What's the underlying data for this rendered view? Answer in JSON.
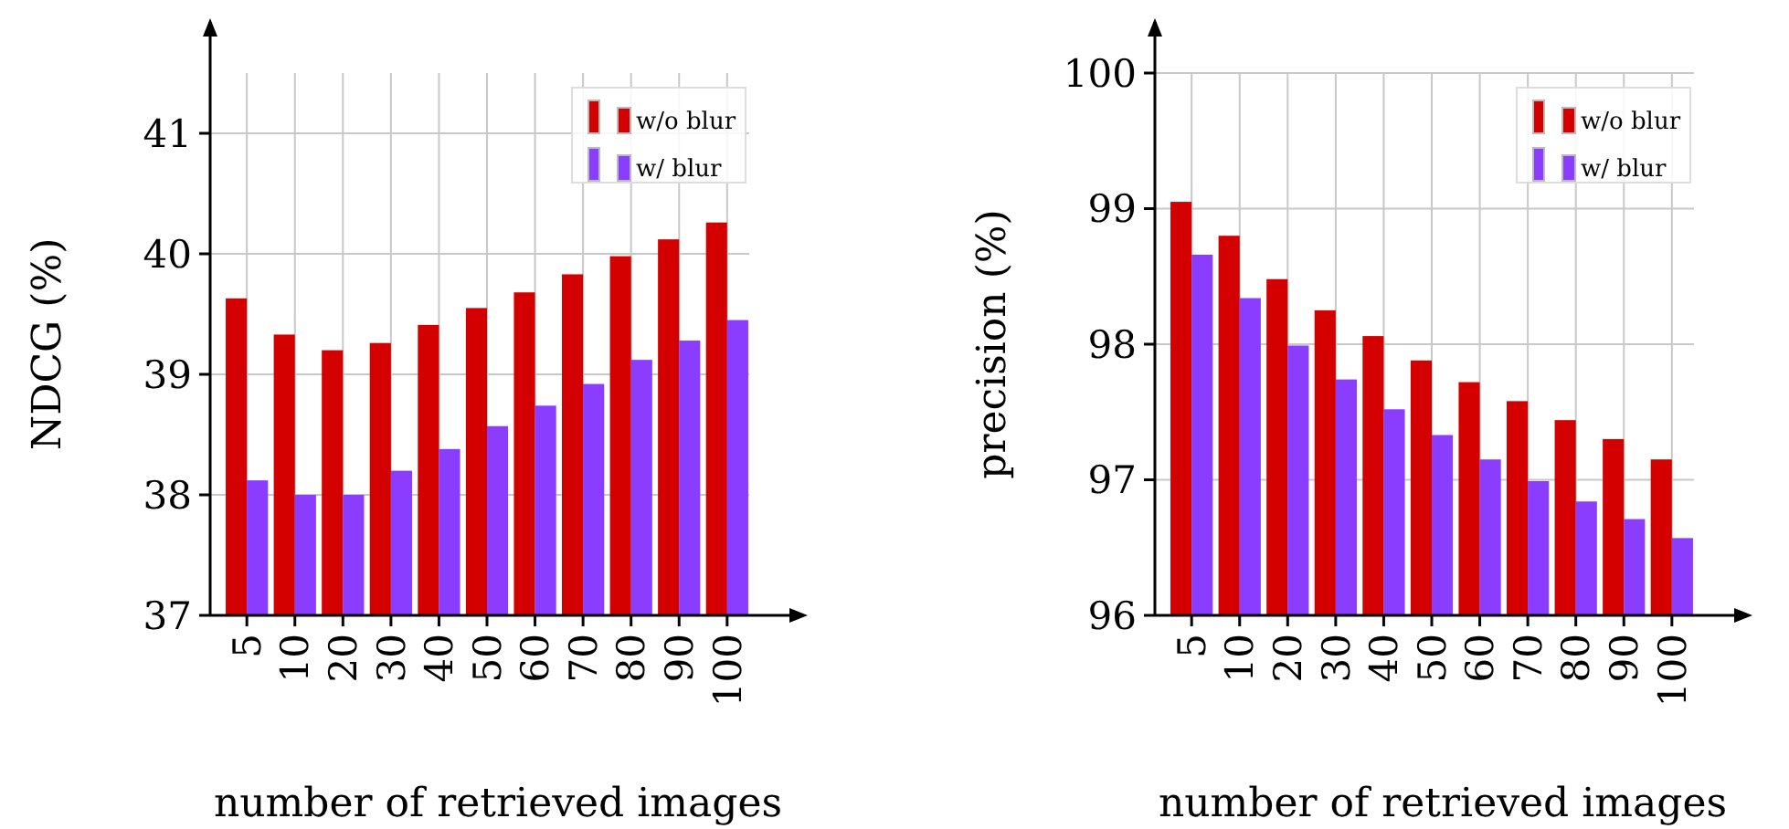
{
  "chart_data": [
    {
      "type": "bar",
      "xlabel": "number of retrieved images",
      "ylabel": "NDCG (%)",
      "categories": [
        "5",
        "10",
        "20",
        "30",
        "40",
        "50",
        "60",
        "70",
        "80",
        "90",
        "100"
      ],
      "series": [
        {
          "name": "w/o blur",
          "color": "#d40000",
          "values": [
            39.63,
            39.33,
            39.2,
            39.26,
            39.41,
            39.55,
            39.68,
            39.83,
            39.98,
            40.12,
            40.26
          ]
        },
        {
          "name": "w/ blur",
          "color": "#8b3dff",
          "values": [
            38.12,
            38.0,
            38.0,
            38.2,
            38.38,
            38.57,
            38.74,
            38.92,
            39.12,
            39.28,
            39.45
          ]
        }
      ],
      "ylim": [
        37,
        41.5
      ],
      "yticks": [
        37,
        38,
        39,
        40,
        41
      ],
      "grid": true,
      "legend": "top right"
    },
    {
      "type": "bar",
      "xlabel": "number of retrieved images",
      "ylabel": "precision (%)",
      "categories": [
        "5",
        "10",
        "20",
        "30",
        "40",
        "50",
        "60",
        "70",
        "80",
        "90",
        "100"
      ],
      "series": [
        {
          "name": "w/o blur",
          "color": "#d40000",
          "values": [
            99.05,
            98.8,
            98.48,
            98.25,
            98.06,
            97.88,
            97.72,
            97.58,
            97.44,
            97.3,
            97.15
          ]
        },
        {
          "name": "w/ blur",
          "color": "#8b3dff",
          "values": [
            98.66,
            98.34,
            97.99,
            97.74,
            97.52,
            97.33,
            97.15,
            96.99,
            96.84,
            96.71,
            96.57
          ]
        }
      ],
      "ylim": [
        96,
        100
      ],
      "yticks": [
        96,
        97,
        98,
        99,
        100
      ],
      "grid": true,
      "legend": "top right"
    }
  ]
}
